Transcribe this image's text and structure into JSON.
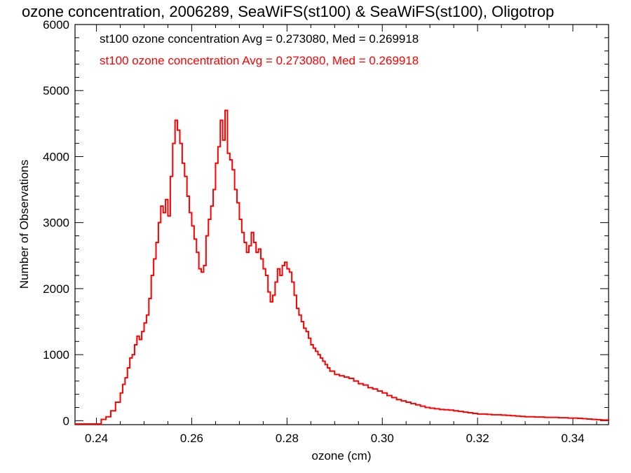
{
  "chart_data": {
    "type": "line",
    "title": "ozone concentration, 2006289, SeaWiFS(st100) & SeaWiFS(st100), Oligotrop",
    "xlabel": "ozone (cm)",
    "ylabel": "Number of Observations",
    "xlim": [
      0.2355,
      0.3475
    ],
    "ylim": [
      -60,
      6000
    ],
    "x_ticks": [
      "0.24",
      "0.26",
      "0.28",
      "0.30",
      "0.32",
      "0.34"
    ],
    "x_tick_values": [
      0.24,
      0.26,
      0.28,
      0.3,
      0.32,
      0.34
    ],
    "y_ticks": [
      "0",
      "1000",
      "2000",
      "3000",
      "4000",
      "5000",
      "6000"
    ],
    "y_tick_values": [
      0,
      1000,
      2000,
      3000,
      4000,
      5000,
      6000
    ],
    "annotations": [
      {
        "text": "st100 ozone concentration Avg = 0.273080, Med = 0.269918",
        "color": "#000000"
      },
      {
        "text": "st100 ozone concentration Avg = 0.273080, Med = 0.269918",
        "color": "#ff0000"
      }
    ],
    "series": [
      {
        "color": "#ff0000",
        "x": [
          0.2355,
          0.241,
          0.242,
          0.243,
          0.244,
          0.245,
          0.2455,
          0.246,
          0.2465,
          0.247,
          0.2475,
          0.248,
          0.2485,
          0.249,
          0.2495,
          0.25,
          0.2505,
          0.251,
          0.2515,
          0.252,
          0.2525,
          0.253,
          0.2535,
          0.254,
          0.2545,
          0.255,
          0.2555,
          0.256,
          0.2565,
          0.257,
          0.2575,
          0.258,
          0.2585,
          0.259,
          0.2595,
          0.26,
          0.2605,
          0.261,
          0.2615,
          0.262,
          0.2625,
          0.263,
          0.2635,
          0.264,
          0.2645,
          0.265,
          0.2655,
          0.266,
          0.2665,
          0.267,
          0.2675,
          0.268,
          0.2685,
          0.269,
          0.2695,
          0.27,
          0.2705,
          0.271,
          0.2715,
          0.272,
          0.2725,
          0.273,
          0.2735,
          0.274,
          0.2745,
          0.275,
          0.2755,
          0.276,
          0.2765,
          0.277,
          0.2775,
          0.278,
          0.2785,
          0.279,
          0.2795,
          0.28,
          0.2805,
          0.281,
          0.2815,
          0.282,
          0.2825,
          0.283,
          0.2835,
          0.284,
          0.2845,
          0.285,
          0.2855,
          0.286,
          0.2865,
          0.287,
          0.2875,
          0.288,
          0.2885,
          0.289,
          0.29,
          0.291,
          0.292,
          0.293,
          0.294,
          0.295,
          0.296,
          0.297,
          0.298,
          0.299,
          0.3,
          0.301,
          0.302,
          0.303,
          0.304,
          0.305,
          0.306,
          0.307,
          0.308,
          0.309,
          0.31,
          0.311,
          0.312,
          0.313,
          0.314,
          0.315,
          0.316,
          0.317,
          0.318,
          0.319,
          0.32,
          0.321,
          0.322,
          0.323,
          0.324,
          0.325,
          0.326,
          0.327,
          0.328,
          0.329,
          0.33,
          0.331,
          0.332,
          0.333,
          0.334,
          0.335,
          0.336,
          0.337,
          0.338,
          0.339,
          0.34,
          0.341,
          0.342,
          0.343,
          0.344,
          0.345,
          0.346,
          0.3475
        ],
        "y": [
          -50,
          20,
          60,
          150,
          280,
          420,
          550,
          650,
          800,
          950,
          1000,
          1150,
          1280,
          1230,
          1350,
          1480,
          1600,
          1850,
          2200,
          2450,
          2700,
          3000,
          3250,
          3150,
          3350,
          3100,
          3700,
          4200,
          4550,
          4400,
          4200,
          3900,
          3700,
          3400,
          3150,
          2950,
          2750,
          2550,
          2300,
          2250,
          2350,
          2800,
          3050,
          3250,
          3500,
          3900,
          4150,
          4550,
          4250,
          4700,
          4050,
          3950,
          3800,
          3500,
          3300,
          3050,
          2850,
          2700,
          2550,
          2650,
          2850,
          2700,
          2550,
          2600,
          2450,
          2300,
          2200,
          1950,
          1800,
          1900,
          2100,
          2300,
          2200,
          2350,
          2400,
          2300,
          2250,
          2100,
          1900,
          1700,
          1600,
          1500,
          1400,
          1350,
          1250,
          1150,
          1100,
          1050,
          1000,
          950,
          900,
          850,
          800,
          750,
          700,
          680,
          660,
          640,
          600,
          560,
          540,
          500,
          480,
          450,
          420,
          380,
          350,
          320,
          300,
          280,
          260,
          240,
          220,
          200,
          190,
          180,
          170,
          165,
          160,
          150,
          140,
          130,
          120,
          110,
          100,
          100,
          95,
          90,
          90,
          85,
          80,
          75,
          70,
          65,
          60,
          60,
          55,
          55,
          50,
          50,
          50,
          45,
          45,
          40,
          40,
          35,
          30,
          25,
          20,
          15,
          10,
          5
        ]
      }
    ]
  }
}
